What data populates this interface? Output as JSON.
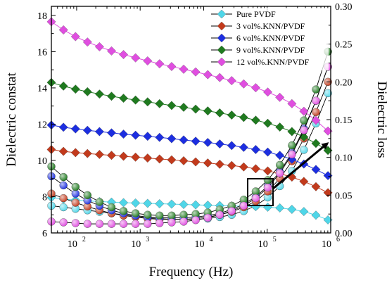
{
  "chart_data": {
    "type": "scatter",
    "xlabel": "Frequency (Hz)",
    "ylabel_left": "Dielectric constat",
    "ylabel_right": "Dielectric loss",
    "x_scale": "log",
    "xlim": [
      40,
      1000000
    ],
    "x_ticks": [
      100,
      1000,
      10000,
      100000,
      1000000
    ],
    "x_tick_labels": [
      {
        "base": "10",
        "exp": "2"
      },
      {
        "base": "10",
        "exp": "3"
      },
      {
        "base": "10",
        "exp": "4"
      },
      {
        "base": "10",
        "exp": "5"
      },
      {
        "base": "10",
        "exp": "6"
      }
    ],
    "ylim_left": [
      6,
      18.5
    ],
    "y_ticks_left": [
      "6",
      "8",
      "10",
      "12",
      "14",
      "16",
      "18"
    ],
    "ylim_right": [
      0,
      0.3
    ],
    "y_ticks_right": [
      "0.00",
      "0.05",
      "0.10",
      "0.15",
      "0.20",
      "0.25",
      "0.30"
    ],
    "grid": false,
    "legend_position": "top-right",
    "x": [
      40,
      62,
      96,
      148,
      229,
      354,
      547,
      846,
      1310,
      2020,
      3130,
      4840,
      7480,
      11600,
      17900,
      27600,
      42700,
      66000,
      102000,
      158000,
      245000,
      378000,
      585000,
      905000
    ],
    "series": [
      {
        "name": "Pure PVDF",
        "color": "#4fd6e8",
        "marker": "diamond",
        "constant": [
          7.95,
          7.87,
          7.81,
          7.77,
          7.73,
          7.7,
          7.67,
          7.65,
          7.63,
          7.61,
          7.59,
          7.57,
          7.55,
          7.53,
          7.51,
          7.49,
          7.47,
          7.45,
          7.42,
          7.38,
          7.3,
          7.18,
          6.98,
          6.72
        ],
        "loss": [
          0.036,
          0.034,
          0.032,
          0.03,
          0.028,
          0.026,
          0.024,
          0.022,
          0.02,
          0.019,
          0.018,
          0.018,
          0.018,
          0.019,
          0.021,
          0.024,
          0.029,
          0.036,
          0.047,
          0.062,
          0.082,
          0.11,
          0.145,
          0.185
        ]
      },
      {
        "name": "3 vol%.KNN/PVDF",
        "color": "#c23a1c",
        "marker": "diamond",
        "constant": [
          10.6,
          10.5,
          10.43,
          10.38,
          10.33,
          10.28,
          10.23,
          10.18,
          10.13,
          10.08,
          10.03,
          9.98,
          9.92,
          9.86,
          9.79,
          9.72,
          9.64,
          9.54,
          9.42,
          9.27,
          9.08,
          8.84,
          8.55,
          8.22
        ],
        "loss": [
          0.052,
          0.046,
          0.04,
          0.035,
          0.03,
          0.026,
          0.023,
          0.021,
          0.019,
          0.018,
          0.018,
          0.018,
          0.019,
          0.021,
          0.024,
          0.028,
          0.034,
          0.042,
          0.055,
          0.072,
          0.095,
          0.125,
          0.16,
          0.2
        ]
      },
      {
        "name": "6 vol%.KNN/PVDF",
        "color": "#1c2ee0",
        "marker": "diamond",
        "constant": [
          11.95,
          11.83,
          11.74,
          11.66,
          11.59,
          11.52,
          11.45,
          11.39,
          11.33,
          11.27,
          11.2,
          11.13,
          11.06,
          10.99,
          10.91,
          10.82,
          10.72,
          10.6,
          10.46,
          10.28,
          10.06,
          9.8,
          9.5,
          9.16
        ],
        "loss": [
          0.075,
          0.063,
          0.052,
          0.043,
          0.036,
          0.03,
          0.026,
          0.023,
          0.021,
          0.02,
          0.02,
          0.02,
          0.021,
          0.023,
          0.026,
          0.031,
          0.038,
          0.048,
          0.062,
          0.081,
          0.106,
          0.138,
          0.175,
          0.22
        ]
      },
      {
        "name": "9 vol%.KNN/PVDF",
        "color": "#1f7a1f",
        "marker": "diamond",
        "constant": [
          14.3,
          14.1,
          13.93,
          13.79,
          13.66,
          13.54,
          13.43,
          13.33,
          13.23,
          13.13,
          13.03,
          12.93,
          12.83,
          12.73,
          12.62,
          12.5,
          12.37,
          12.22,
          12.05,
          11.84,
          11.59,
          11.29,
          10.94,
          10.55
        ],
        "loss": [
          0.088,
          0.074,
          0.061,
          0.05,
          0.041,
          0.034,
          0.029,
          0.026,
          0.024,
          0.023,
          0.023,
          0.024,
          0.025,
          0.027,
          0.031,
          0.036,
          0.044,
          0.055,
          0.07,
          0.09,
          0.116,
          0.149,
          0.19,
          0.24
        ]
      },
      {
        "name": "12 vol%.KNN/PVDF",
        "color": "#e04ee0",
        "marker": "diamond",
        "constant": [
          17.65,
          17.2,
          16.83,
          16.53,
          16.27,
          16.04,
          15.84,
          15.66,
          15.49,
          15.33,
          15.18,
          15.03,
          14.88,
          14.73,
          14.57,
          14.4,
          14.22,
          14.01,
          13.77,
          13.48,
          13.13,
          12.71,
          12.21,
          11.62
        ],
        "loss": [
          0.015,
          0.014,
          0.013,
          0.012,
          0.012,
          0.012,
          0.012,
          0.012,
          0.012,
          0.013,
          0.014,
          0.015,
          0.017,
          0.02,
          0.024,
          0.029,
          0.036,
          0.046,
          0.06,
          0.079,
          0.104,
          0.136,
          0.175,
          0.22
        ]
      }
    ]
  }
}
